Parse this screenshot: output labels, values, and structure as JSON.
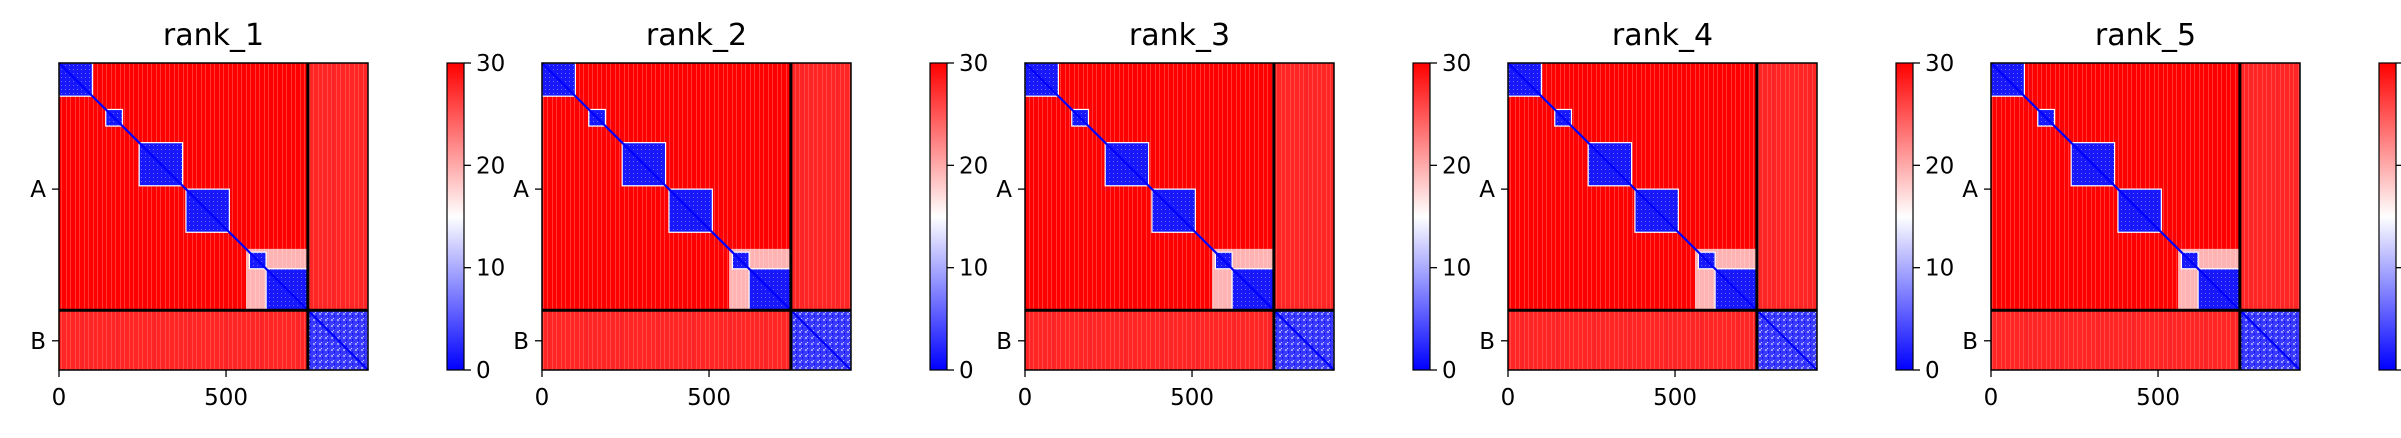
{
  "chart_data": {
    "type": "heatmap",
    "panels": [
      {
        "title": "rank_1"
      },
      {
        "title": "rank_2"
      },
      {
        "title": "rank_3"
      },
      {
        "title": "rank_4"
      },
      {
        "title": "rank_5"
      }
    ],
    "xlim": [
      0,
      925
    ],
    "x_ticks": [
      {
        "value": 0,
        "label": "0"
      },
      {
        "value": 500,
        "label": "500"
      }
    ],
    "y_ticks": [
      {
        "value": 380,
        "label": "A"
      },
      {
        "value": 837,
        "label": "B"
      }
    ],
    "chain_boundary": 745,
    "total_length": 925,
    "colorbar": {
      "min": 0,
      "max": 30,
      "ticks": [
        0,
        10,
        20,
        30
      ],
      "colormap": "bwr"
    },
    "colors": {
      "low": "#0000ff",
      "mid": "#ffffff",
      "high": "#ff0000"
    },
    "domains": [
      [
        0,
        100
      ],
      [
        140,
        190
      ],
      [
        240,
        370
      ],
      [
        380,
        510
      ],
      [
        570,
        620
      ],
      [
        620,
        745
      ],
      [
        745,
        925
      ]
    ]
  }
}
